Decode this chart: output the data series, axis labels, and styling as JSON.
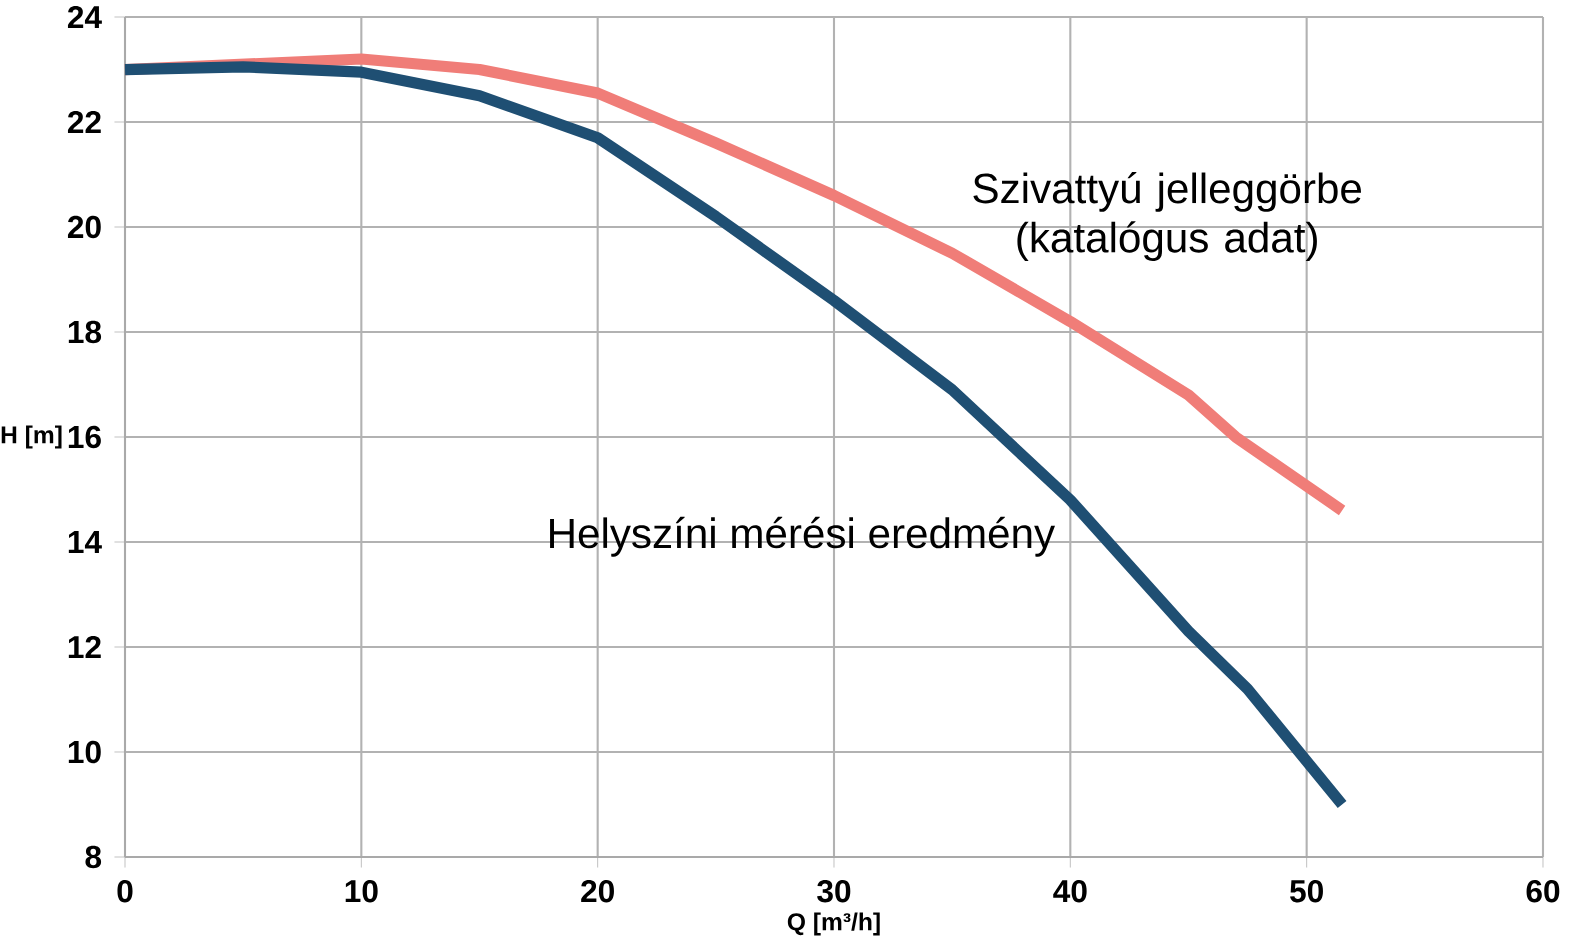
{
  "chart_data": {
    "type": "line",
    "xlabel": "Q [m³/h]",
    "ylabel": "H [m]",
    "xlim": [
      0,
      60
    ],
    "ylim": [
      8,
      24
    ],
    "xticks": [
      0,
      10,
      20,
      30,
      40,
      50,
      60
    ],
    "yticks": [
      8,
      10,
      12,
      14,
      16,
      18,
      20,
      22,
      24
    ],
    "grid": true,
    "legend": false,
    "marker": "none",
    "line_style": "solid",
    "series": [
      {
        "name": "Szivattyú jelleggörbe (katalógus adat)",
        "color": "#f07d78",
        "x": [
          0,
          10,
          15,
          20,
          25,
          30,
          35,
          40,
          45,
          47,
          51.5
        ],
        "values": [
          23.0,
          23.2,
          23.0,
          22.55,
          21.6,
          20.6,
          19.5,
          18.2,
          16.8,
          16.0,
          14.6
        ]
      },
      {
        "name": "Helyszíni mérési eredmény",
        "color": "#1f4f73",
        "x": [
          0,
          5,
          10,
          15,
          20,
          25,
          30,
          35,
          40,
          45,
          47.5,
          51.5
        ],
        "values": [
          23.0,
          23.05,
          22.95,
          22.5,
          21.7,
          20.2,
          18.6,
          16.9,
          14.8,
          12.3,
          11.2,
          9.0
        ]
      }
    ]
  }
}
